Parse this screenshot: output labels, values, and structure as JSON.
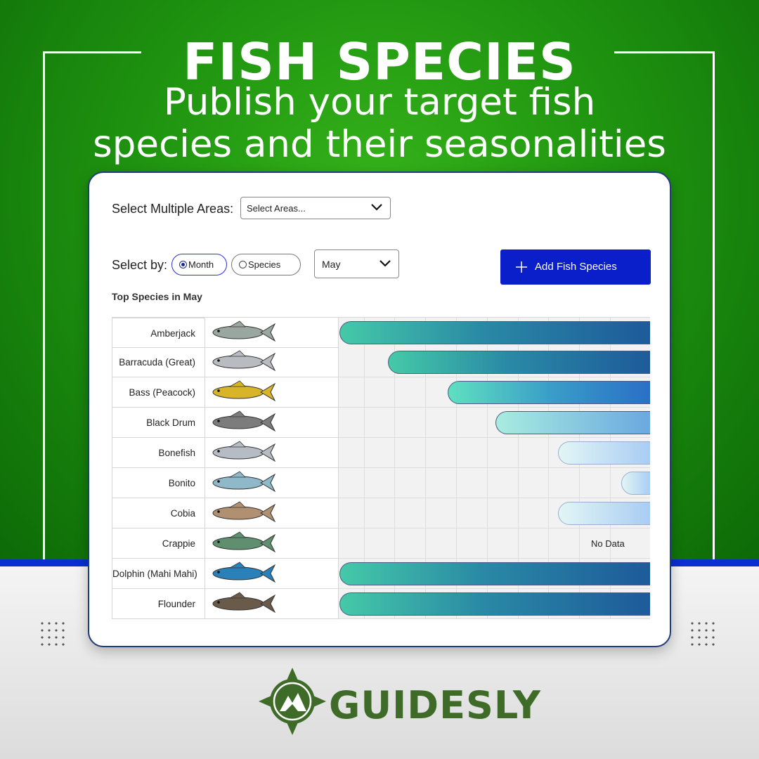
{
  "header": {
    "title": "FISH SPECIES",
    "subtitle_line1": "Publish your target fish",
    "subtitle_line2": "species and their seasonalities"
  },
  "filters": {
    "areas_label": "Select Multiple Areas:",
    "areas_placeholder": "Select Areas...",
    "select_by_label": "Select by:",
    "options": [
      {
        "label": "Month",
        "selected": true
      },
      {
        "label": "Species",
        "selected": false
      }
    ],
    "month_value": "May",
    "add_button_label": "Add Fish Species"
  },
  "table": {
    "heading": "Top Species in May",
    "no_data_label": "No Data",
    "rows": [
      {
        "name": "Amberjack",
        "bar_start": 0.0,
        "icon": "amberjack-fish-icon"
      },
      {
        "name": "Barracuda (Great)",
        "bar_start": 0.155,
        "icon": "barracuda-fish-icon"
      },
      {
        "name": "Bass (Peacock)",
        "bar_start": 0.348,
        "icon": "peacock-bass-fish-icon"
      },
      {
        "name": "Black Drum",
        "bar_start": 0.501,
        "icon": "black-drum-fish-icon"
      },
      {
        "name": "Bonefish",
        "bar_start": 0.701,
        "icon": "bonefish-fish-icon"
      },
      {
        "name": "Bonito",
        "bar_start": 0.905,
        "icon": "bonito-fish-icon"
      },
      {
        "name": "Cobia",
        "bar_start": 0.701,
        "icon": "cobia-fish-icon"
      },
      {
        "name": "Crappie",
        "bar_start": null,
        "icon": "crappie-fish-icon"
      },
      {
        "name": "Dolphin (Mahi Mahi)",
        "bar_start": 0.0,
        "icon": "mahi-mahi-fish-icon"
      },
      {
        "name": "Flounder",
        "bar_start": 0.0,
        "icon": "flounder-fish-icon"
      }
    ]
  },
  "brand": {
    "name": "GUIDESLY",
    "colors": {
      "green": "#3e6b27",
      "blue": "#0a1fc9",
      "accent": "#0a2fcf"
    }
  }
}
